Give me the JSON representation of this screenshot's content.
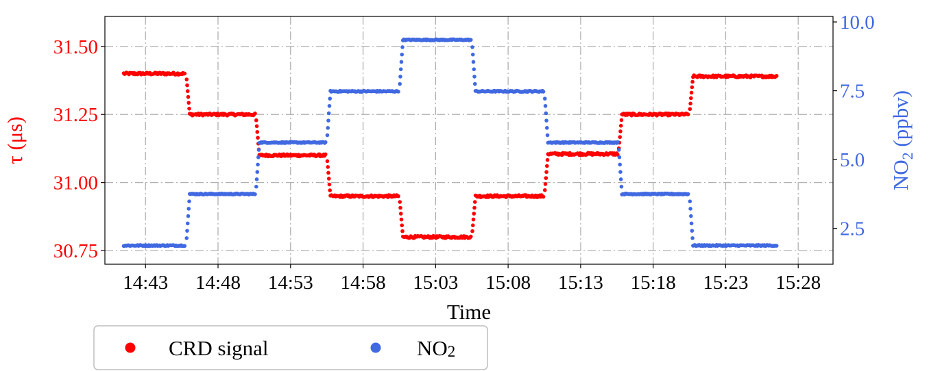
{
  "chart_data": {
    "type": "scatter",
    "xlabel": "Time",
    "ylabel_left": "τ (μs)",
    "ylabel_right": {
      "text": "NO",
      "sub": "2",
      "rest": " (ppbv)"
    },
    "x_ticks": [
      "14:43",
      "14:48",
      "14:53",
      "14:58",
      "15:03",
      "15:08",
      "15:13",
      "15:18",
      "15:23",
      "15:28"
    ],
    "x_tick_minutes": [
      0,
      5,
      10,
      15,
      20,
      25,
      30,
      35,
      40,
      45
    ],
    "x_start_label": "14:43",
    "xlim_minutes": [
      -2.8,
      47.4
    ],
    "y_left_ticks": [
      "30.75",
      "31.00",
      "31.25",
      "31.50"
    ],
    "y_left_tick_values": [
      30.75,
      31.0,
      31.25,
      31.5
    ],
    "y_left_lim": [
      30.7,
      31.61
    ],
    "y_right_ticks": [
      "2.5",
      "5.0",
      "7.5",
      "10.0"
    ],
    "y_right_tick_values": [
      2.5,
      5.0,
      7.5,
      10.0
    ],
    "y_right_lim": [
      1.2,
      10.2
    ],
    "grid": true,
    "legend_position": "bottom-left, below axes",
    "series": [
      {
        "name": "CRD signal",
        "name_parts": {
          "text": "CRD signal",
          "sub": ""
        },
        "axis": "left",
        "color": "#ff0000",
        "steps": [
          {
            "start_min": -1.5,
            "end_min": 2.8,
            "value": 31.4
          },
          {
            "start_min": 2.8,
            "end_min": 7.6,
            "value": 31.25
          },
          {
            "start_min": 7.6,
            "end_min": 12.5,
            "value": 31.1
          },
          {
            "start_min": 12.5,
            "end_min": 17.5,
            "value": 30.95
          },
          {
            "start_min": 17.5,
            "end_min": 22.5,
            "value": 30.8
          },
          {
            "start_min": 22.5,
            "end_min": 27.5,
            "value": 30.95
          },
          {
            "start_min": 27.5,
            "end_min": 32.6,
            "value": 31.105
          },
          {
            "start_min": 32.6,
            "end_min": 37.5,
            "value": 31.25
          },
          {
            "start_min": 37.5,
            "end_min": 43.6,
            "value": 31.39
          }
        ]
      },
      {
        "name": "NO2",
        "name_parts": {
          "text": "NO",
          "sub": "2"
        },
        "axis": "right",
        "color": "#4169e1",
        "steps": [
          {
            "start_min": -1.5,
            "end_min": 2.8,
            "value": 1.88
          },
          {
            "start_min": 2.8,
            "end_min": 7.6,
            "value": 3.75
          },
          {
            "start_min": 7.6,
            "end_min": 12.5,
            "value": 5.62
          },
          {
            "start_min": 12.5,
            "end_min": 17.5,
            "value": 7.48
          },
          {
            "start_min": 17.5,
            "end_min": 22.5,
            "value": 9.35
          },
          {
            "start_min": 22.5,
            "end_min": 27.5,
            "value": 7.48
          },
          {
            "start_min": 27.5,
            "end_min": 32.6,
            "value": 5.62
          },
          {
            "start_min": 32.6,
            "end_min": 37.5,
            "value": 3.75
          },
          {
            "start_min": 37.5,
            "end_min": 43.6,
            "value": 1.88
          }
        ]
      }
    ]
  }
}
